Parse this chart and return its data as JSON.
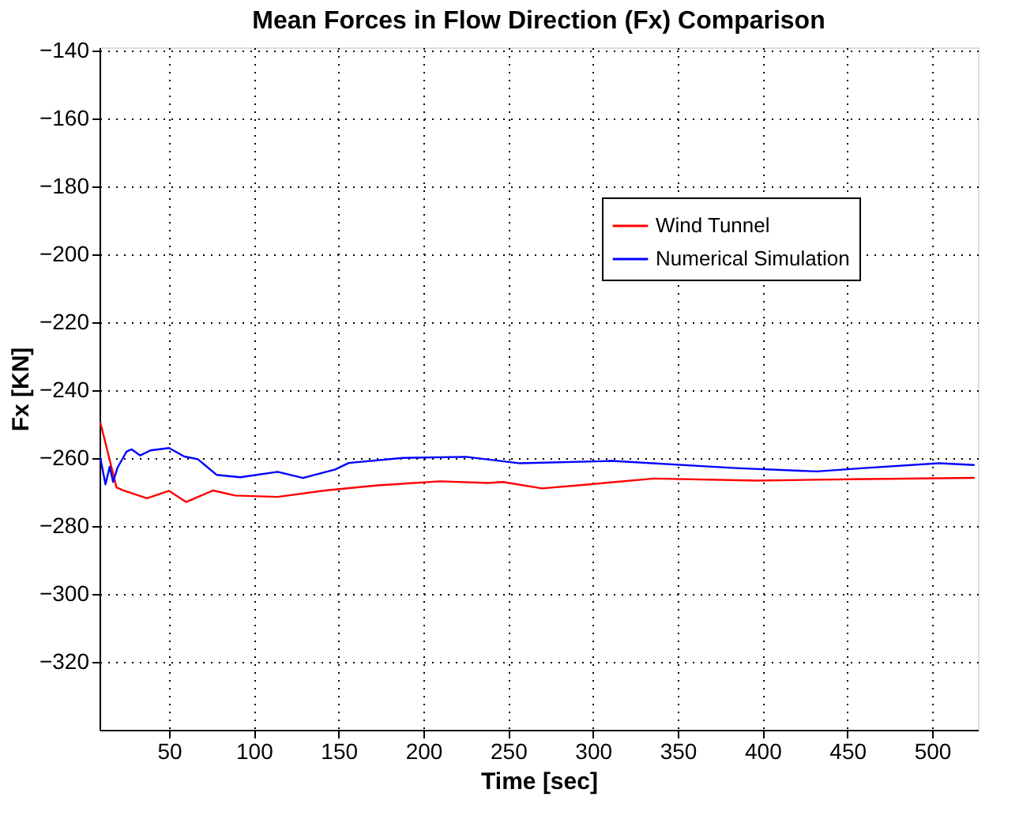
{
  "chart_data": {
    "type": "line",
    "title": "Mean Forces in Flow Direction (Fx) Comparison",
    "xlabel": "Time [sec]",
    "ylabel": "Fx [KN]",
    "xlim": [
      9,
      527
    ],
    "ylim": [
      -340,
      -139
    ],
    "xticks": [
      50,
      100,
      150,
      200,
      250,
      300,
      350,
      400,
      450,
      500
    ],
    "yticks": [
      -320,
      -300,
      -280,
      -260,
      -240,
      -220,
      -200,
      -180,
      -160,
      -140
    ],
    "grid": true,
    "legend": "top right",
    "marker": "none",
    "line_style": "solid",
    "series": [
      {
        "name": "Wind Tunnel",
        "color": "#ff0000",
        "x": [
          9.5,
          19,
          23,
          37,
          50,
          60,
          76,
          89,
          114,
          142,
          173,
          210,
          238,
          247,
          270,
          298,
          336,
          397,
          453,
          525
        ],
        "values": [
          -249.5,
          -268.6,
          -269.5,
          -271.8,
          -269.6,
          -272.9,
          -269.5,
          -271,
          -271.4,
          -269.5,
          -268,
          -266.8,
          -267.3,
          -267,
          -268.9,
          -267.7,
          -266,
          -266.6,
          -266.2,
          -265.8
        ]
      },
      {
        "name": "Numerical Simulation",
        "color": "#0000ff",
        "x": [
          9.5,
          12.5,
          15,
          17,
          19.7,
          25,
          28,
          33,
          39,
          50,
          59,
          67,
          78,
          92,
          114,
          129,
          148,
          156,
          188,
          225,
          257,
          311,
          384,
          432,
          460,
          504,
          525
        ],
        "values": [
          -260,
          -267.7,
          -262.5,
          -267,
          -262.7,
          -258,
          -257.4,
          -259.2,
          -257.7,
          -257,
          -259.5,
          -260.3,
          -264.9,
          -265.6,
          -264,
          -265.8,
          -263.3,
          -261.4,
          -259.9,
          -259.6,
          -261.5,
          -260.8,
          -262.9,
          -263.9,
          -262.9,
          -261.5,
          -262
        ]
      }
    ]
  }
}
